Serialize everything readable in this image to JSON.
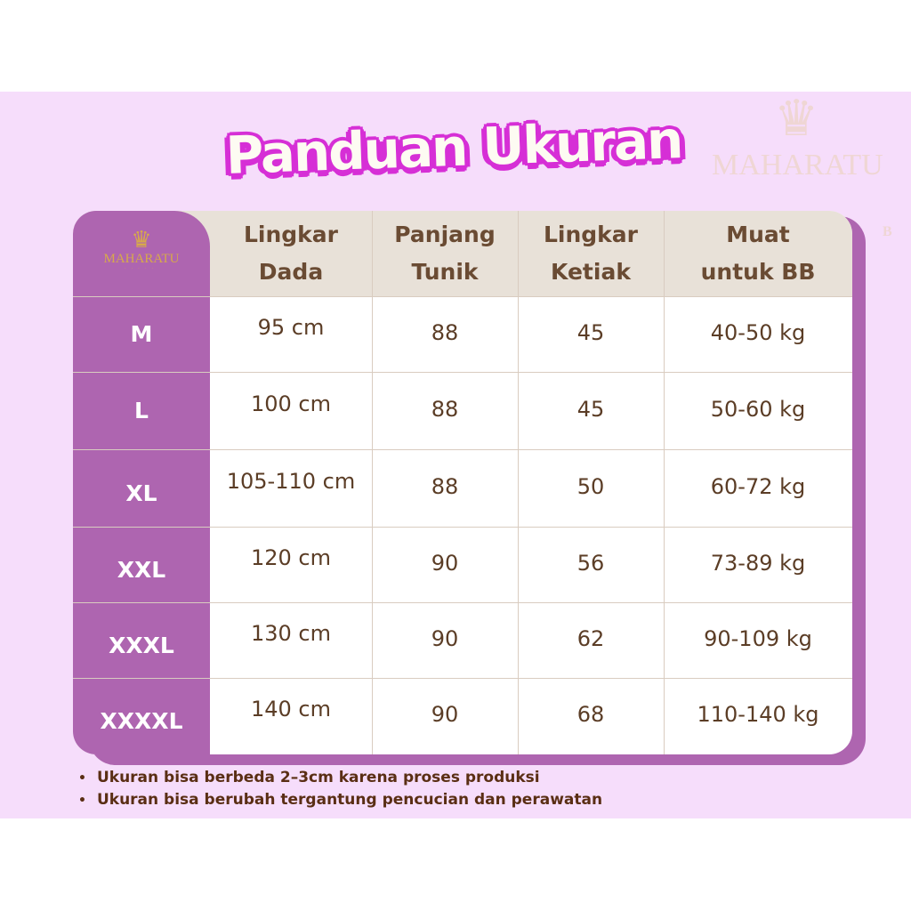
{
  "title": "Panduan Ukuran",
  "brand": {
    "name": "MAHARATU",
    "watermark_text": "MAHARATU",
    "watermark_letter": "B"
  },
  "colors": {
    "background": "#f6ddfb",
    "accent_purple": "#ae65b0",
    "title_outline": "#d62fd6",
    "header_bg": "#e8e1d8",
    "text_brown": "#5b3d26"
  },
  "table": {
    "headers": [
      "Lingkar\nDada",
      "Panjang\nTunik",
      "Lingkar\nKetiak",
      "Muat\nuntuk BB"
    ],
    "rows": [
      {
        "size": "M",
        "cells": [
          "95 cm",
          "88",
          "45",
          "40-50 kg"
        ]
      },
      {
        "size": "L",
        "cells": [
          "100 cm",
          "88",
          "45",
          "50-60 kg"
        ]
      },
      {
        "size": "XL",
        "cells": [
          "105-110 cm",
          "88",
          "50",
          "60-72 kg"
        ]
      },
      {
        "size": "XXL",
        "cells": [
          "120 cm",
          "90",
          "56",
          "73-89 kg"
        ]
      },
      {
        "size": "XXXL",
        "cells": [
          "130 cm",
          "90",
          "62",
          "90-109 kg"
        ]
      },
      {
        "size": "XXXXL",
        "cells": [
          "140 cm",
          "90",
          "68",
          "110-140 kg"
        ]
      }
    ]
  },
  "notes": [
    "Ukuran bisa berbeda 2–3cm karena proses produksi",
    "Ukuran bisa berubah tergantung pencucian dan perawatan"
  ]
}
